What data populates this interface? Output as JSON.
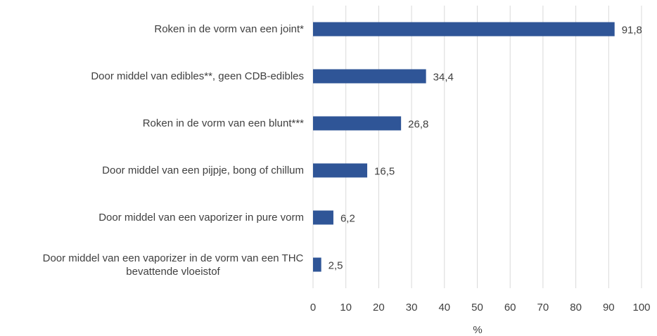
{
  "chart_data": {
    "type": "bar",
    "orientation": "horizontal",
    "categories": [
      "Roken in de vorm van een joint*",
      "Door middel van edibles**, geen CDB-edibles",
      "Roken in de vorm van een blunt***",
      "Door middel van een pijpje, bong of chillum",
      "Door middel van een vaporizer in pure vorm",
      "Door middel van een vaporizer in de vorm van een THC bevattende vloeistof"
    ],
    "values": [
      91.8,
      34.4,
      26.8,
      16.5,
      6.2,
      2.5
    ],
    "value_labels": [
      "91,8",
      "34,4",
      "26,8",
      "16,5",
      "6,2",
      "2,5"
    ],
    "color": "#2f5597",
    "xlabel": "%",
    "xlim": [
      0,
      100
    ],
    "xticks": [
      0,
      10,
      20,
      30,
      40,
      50,
      60,
      70,
      80,
      90,
      100
    ],
    "grid": true
  }
}
